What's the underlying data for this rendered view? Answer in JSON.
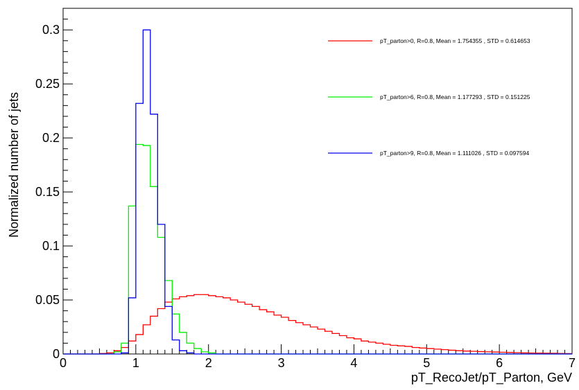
{
  "chart_data": {
    "type": "line",
    "title": "",
    "xlabel": "pT_RecoJet/pT_Parton, GeV",
    "ylabel": "Normalized number of jets",
    "xlim": [
      0,
      7
    ],
    "ylim": [
      0,
      0.32
    ],
    "x_ticks": [
      0,
      1,
      2,
      3,
      4,
      5,
      6,
      7
    ],
    "x_tick_labels": [
      "0",
      "1",
      "2",
      "3",
      "4",
      "5",
      "6",
      "7"
    ],
    "y_ticks": [
      0,
      0.05,
      0.1,
      0.15,
      0.2,
      0.25,
      0.3
    ],
    "y_tick_labels": [
      "0",
      "0.05",
      "0.1",
      "0.15",
      "0.2",
      "0.25",
      "0.3"
    ],
    "grid": false,
    "legend_position": "top-right",
    "histogram_style": "step",
    "bin_width": 0.1,
    "bin_start": 0,
    "series": [
      {
        "name": "pT_parton>0, R=0.8, Mean = 1.754355 , STD = 0.614653",
        "color": "#ff0000",
        "values": [
          0,
          0,
          0,
          0,
          0,
          0.0005,
          0.001,
          0.003,
          0.006,
          0.012,
          0.018,
          0.027,
          0.035,
          0.042,
          0.048,
          0.051,
          0.053,
          0.054,
          0.055,
          0.055,
          0.054,
          0.053,
          0.052,
          0.05,
          0.048,
          0.046,
          0.044,
          0.041,
          0.039,
          0.036,
          0.034,
          0.031,
          0.029,
          0.027,
          0.025,
          0.023,
          0.021,
          0.019,
          0.017,
          0.015,
          0.014,
          0.012,
          0.011,
          0.01,
          0.009,
          0.008,
          0.0075,
          0.007,
          0.006,
          0.0055,
          0.005,
          0.0045,
          0.004,
          0.0035,
          0.003,
          0.0027,
          0.0025,
          0.0022,
          0.002,
          0.0018,
          0.0016,
          0.0014,
          0.0012,
          0.001,
          0.0009,
          0.0008,
          0.0007,
          0.0006,
          0.0005,
          0.0004
        ]
      },
      {
        "name": "pT_parton>6, R=0.8, Mean = 1.177293 , STD = 0.151225",
        "color": "#00ee00",
        "values": [
          0,
          0,
          0,
          0,
          0,
          0,
          0,
          0.002,
          0.01,
          0.137,
          0.194,
          0.193,
          0.155,
          0.108,
          0.068,
          0.037,
          0.02,
          0.01,
          0.005,
          0.002,
          0.001,
          0,
          0,
          0,
          0,
          0,
          0,
          0,
          0,
          0,
          0,
          0,
          0,
          0,
          0,
          0,
          0,
          0,
          0,
          0,
          0,
          0,
          0,
          0,
          0,
          0,
          0,
          0,
          0,
          0,
          0,
          0,
          0,
          0,
          0,
          0,
          0,
          0,
          0,
          0,
          0,
          0,
          0,
          0,
          0,
          0,
          0,
          0,
          0,
          0
        ]
      },
      {
        "name": "pT_parton>9, R=0.8, Mean = 1.111026 , STD = 0.097594",
        "color": "#0000ee",
        "values": [
          0,
          0,
          0,
          0,
          0,
          0,
          0,
          0,
          0.001,
          0.052,
          0.232,
          0.3,
          0.222,
          0.12,
          0.044,
          0.013,
          0.003,
          0.001,
          0,
          0,
          0,
          0,
          0,
          0,
          0,
          0,
          0,
          0,
          0,
          0,
          0,
          0,
          0,
          0,
          0,
          0,
          0,
          0,
          0,
          0,
          0,
          0,
          0,
          0,
          0,
          0,
          0,
          0,
          0,
          0,
          0,
          0,
          0,
          0,
          0,
          0,
          0,
          0,
          0,
          0,
          0,
          0,
          0,
          0,
          0,
          0,
          0,
          0,
          0,
          0
        ]
      }
    ]
  }
}
